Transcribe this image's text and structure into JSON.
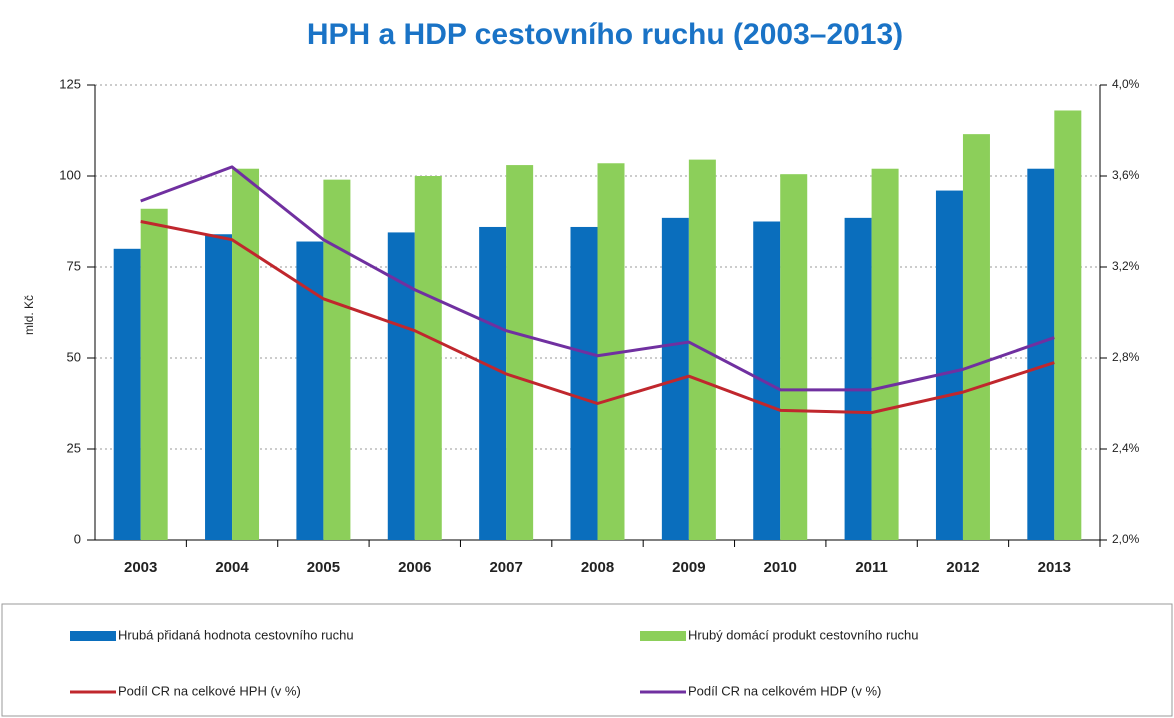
{
  "chart_data": {
    "type": "bar-line",
    "title": "HPH a HDP cestovního ruchu (2003–2013)",
    "ylabel": "mld. Kč",
    "categories": [
      "2003",
      "2004",
      "2005",
      "2006",
      "2007",
      "2008",
      "2009",
      "2010",
      "2011",
      "2012",
      "2013"
    ],
    "series": [
      {
        "name": "Hrubá přidaná hodnota cestovního ruchu",
        "type": "bar",
        "color": "#0a6ebd",
        "values": [
          80,
          84,
          82,
          84.5,
          86,
          86,
          88.5,
          87.5,
          88.5,
          96,
          102
        ]
      },
      {
        "name": "Hrubý domácí produkt cestovního ruchu",
        "type": "bar",
        "color": "#8ccf5a",
        "values": [
          91,
          102,
          99,
          100,
          103,
          103.5,
          104.5,
          100.5,
          102,
          111.5,
          118
        ]
      },
      {
        "name": "Podíl CR na celkové HPH (v %)",
        "type": "line",
        "axis": "y2",
        "color": "#c0272d",
        "values": [
          3.4,
          3.32,
          3.06,
          2.92,
          2.73,
          2.6,
          2.72,
          2.57,
          2.56,
          2.65,
          2.78
        ]
      },
      {
        "name": "Podíl CR na celkovém HDP (v %)",
        "type": "line",
        "axis": "y2",
        "color": "#7030a0",
        "values": [
          3.49,
          3.64,
          3.32,
          3.1,
          2.92,
          2.81,
          2.87,
          2.66,
          2.66,
          2.75,
          2.89
        ]
      }
    ],
    "ylim": [
      0,
      125
    ],
    "yticks": [
      0,
      25,
      50,
      75,
      100,
      125
    ],
    "y2lim": [
      2.0,
      4.0
    ],
    "y2ticks": [
      {
        "value": 2.0,
        "label": "2,0%"
      },
      {
        "value": 2.4,
        "label": "2,4%"
      },
      {
        "value": 2.8,
        "label": "2,8%"
      },
      {
        "value": 3.2,
        "label": "3,2%"
      },
      {
        "value": 3.6,
        "label": "3,6%"
      },
      {
        "value": 4.0,
        "label": "4,0%"
      }
    ],
    "grid": true,
    "legend": "bottom"
  }
}
